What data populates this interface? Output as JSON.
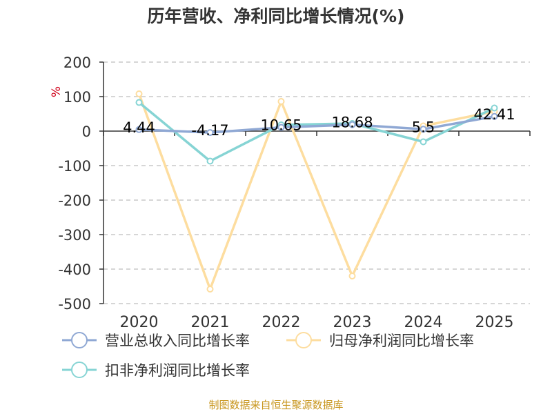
{
  "title": "历年营收、净利同比增长情况(%)",
  "footer": "制图数据来自恒生聚源数据库",
  "chart_data": {
    "type": "line",
    "categories": [
      "2020",
      "2021",
      "2022",
      "2023",
      "2024",
      "2025"
    ],
    "ylabel": "%",
    "ylim": [
      -500,
      200
    ],
    "yticks": [
      200,
      100,
      0,
      -100,
      -200,
      -300,
      -400,
      -500
    ],
    "grid": true,
    "legend_position": "bottom",
    "series": [
      {
        "name": "营业总收入同比增长率",
        "color": "#8fa8d4",
        "values": [
          4.44,
          -4.17,
          10.65,
          18.68,
          5.5,
          42.41
        ],
        "labels": [
          "4.44",
          "-4.17",
          "10.65",
          "18.68",
          "5.5",
          "42.41"
        ]
      },
      {
        "name": "归母净利润同比增长率",
        "color": "#fddd9f",
        "values": [
          108,
          -458,
          86,
          -420,
          15,
          57
        ]
      },
      {
        "name": "扣非净利润同比增长率",
        "color": "#86d4d4",
        "values": [
          83,
          -87,
          18,
          22,
          -31,
          67
        ]
      }
    ]
  }
}
